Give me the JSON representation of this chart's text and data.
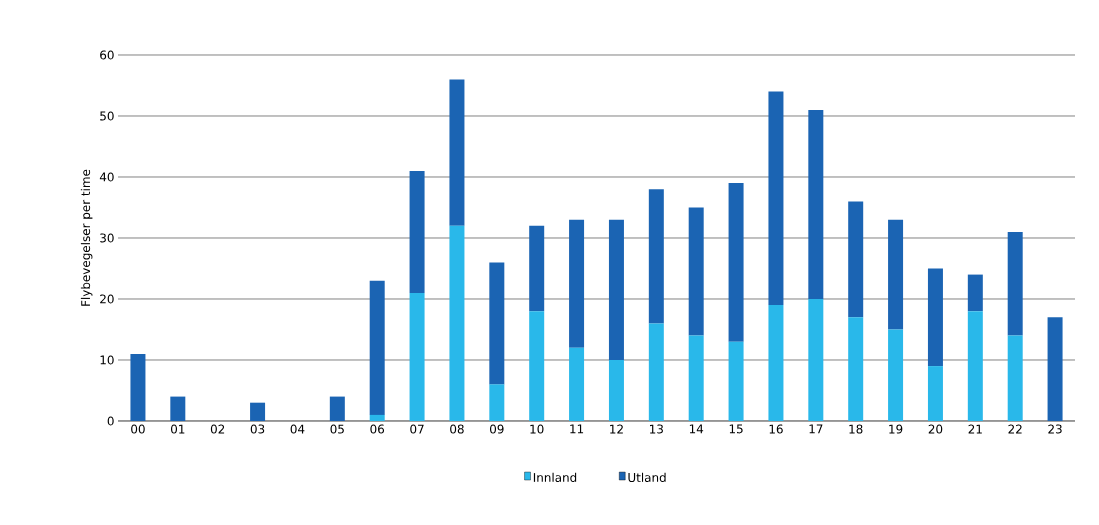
{
  "chart_data": {
    "type": "bar",
    "stacked": true,
    "ylabel": "Flybevegelser per time",
    "categories": [
      "00",
      "01",
      "02",
      "03",
      "04",
      "05",
      "06",
      "07",
      "08",
      "09",
      "10",
      "11",
      "12",
      "13",
      "14",
      "15",
      "16",
      "17",
      "18",
      "19",
      "20",
      "21",
      "22",
      "23"
    ],
    "series": [
      {
        "name": "Innland",
        "color": "#29b8ea",
        "values": [
          0,
          0,
          0,
          0,
          0,
          0,
          1,
          21,
          32,
          6,
          18,
          12,
          10,
          16,
          14,
          13,
          19,
          20,
          17,
          15,
          9,
          18,
          14,
          0
        ]
      },
      {
        "name": "Utland",
        "color": "#1b64b3",
        "values": [
          11,
          4,
          0,
          3,
          0,
          4,
          22,
          20,
          24,
          20,
          14,
          21,
          23,
          22,
          21,
          26,
          35,
          31,
          19,
          18,
          16,
          6,
          17,
          17
        ]
      }
    ],
    "ylim": [
      0,
      60
    ],
    "yticks": [
      0,
      10,
      20,
      30,
      40,
      50,
      60
    ],
    "grid": "y",
    "legend": "bottom"
  }
}
